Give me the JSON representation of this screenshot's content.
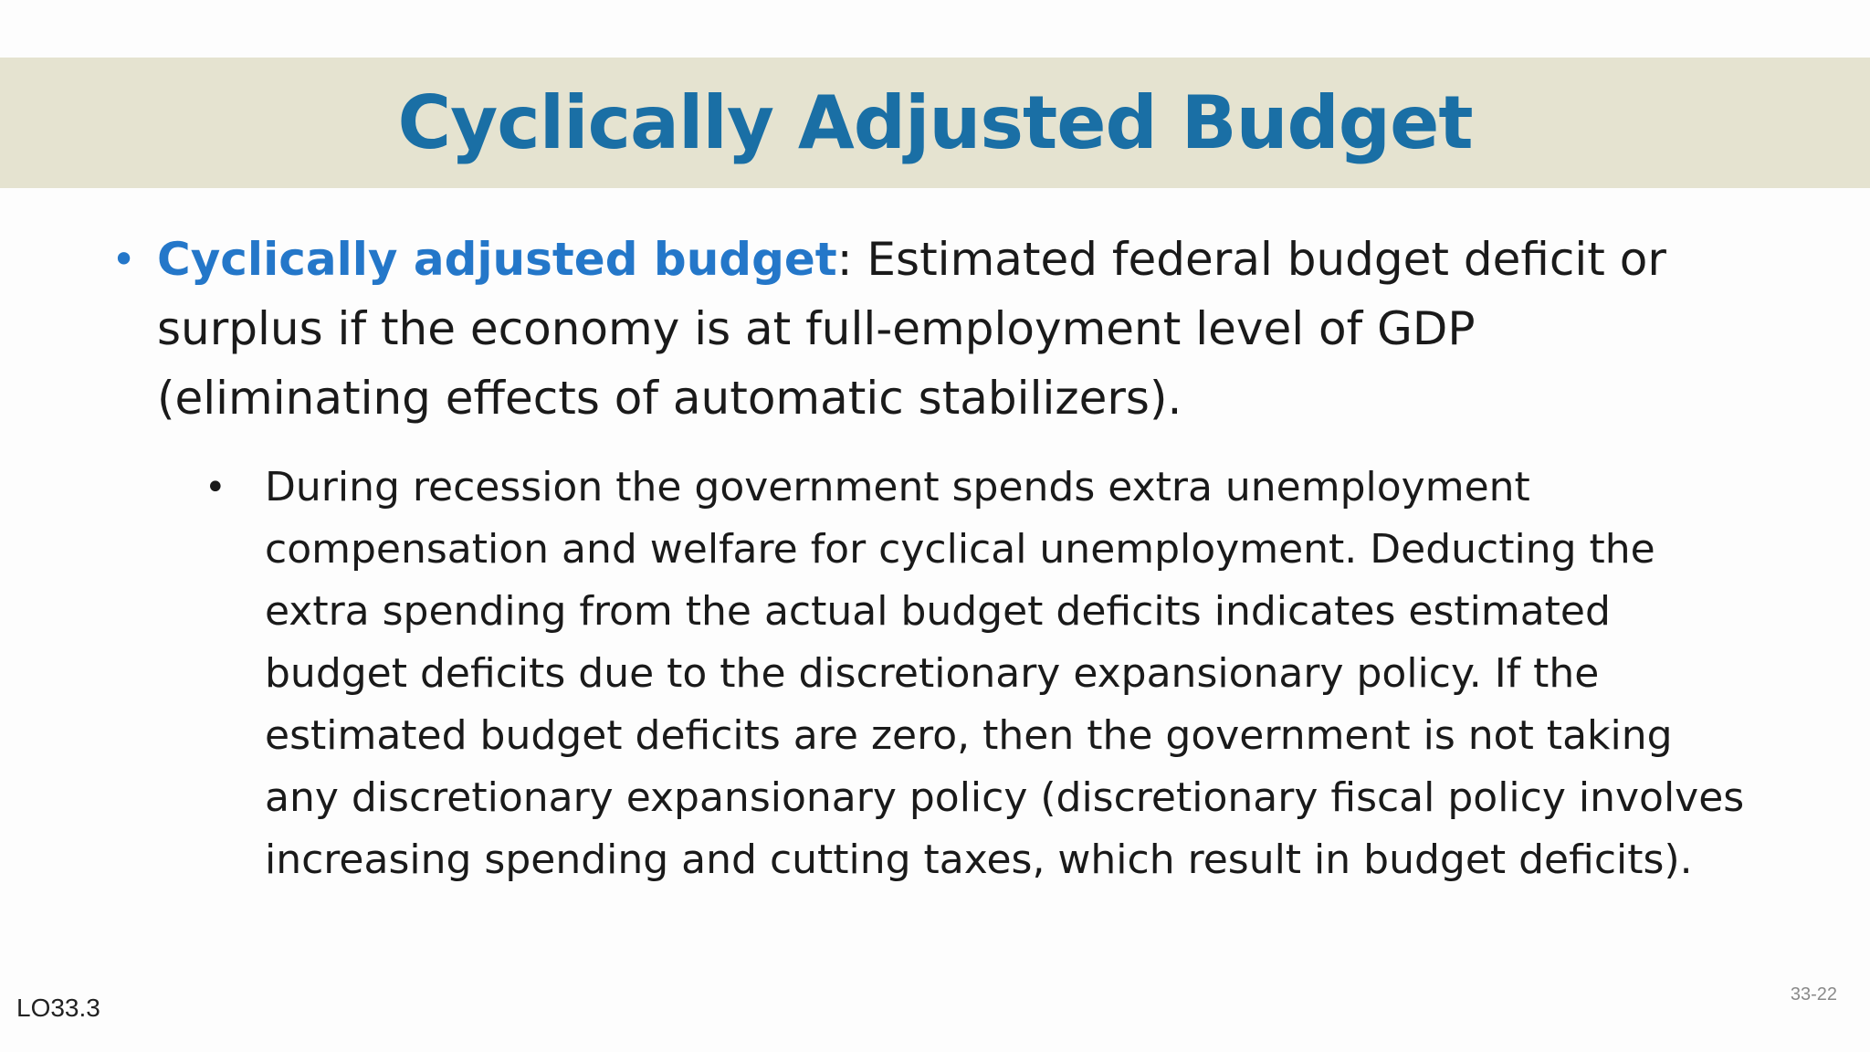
{
  "slide": {
    "title": "Cyclically Adjusted Budget",
    "bullets": [
      {
        "term": "Cyclically adjusted budget",
        "text": ": Estimated federal budget deficit or surplus if the economy is at full-employment level of GDP (eliminating effects of automatic stabilizers).",
        "sub_bullets": [
          {
            "text": "During recession the government spends extra unemployment compensation and welfare for cyclical unemployment.  Deducting the extra spending from the actual budget deficits indicates estimated budget deficits due to the discretionary expansionary policy.  If the estimated budget deficits are zero, then the government is not taking any discretionary expansionary policy (discretionary fiscal policy involves increasing spending and cutting taxes, which result in budget deficits)."
          }
        ]
      }
    ],
    "bullet_glyph": "•",
    "footer_left": "LO33.3",
    "slide_number": "33-22"
  },
  "colors": {
    "title": "#1a6fa5",
    "title_band": "#e5e3d0",
    "term": "#2477c9",
    "body_text": "#1a1a1a"
  }
}
